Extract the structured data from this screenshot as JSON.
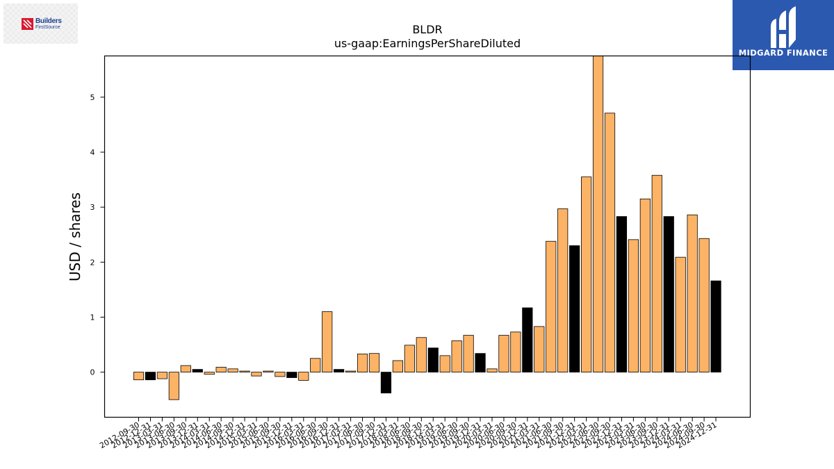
{
  "logos": {
    "left": {
      "line1": "Builders",
      "line2": "FirstSource",
      "icon": "builders-firstsource-logo-icon",
      "color": "#1b3f8f"
    },
    "right": {
      "name": "MIDGARD FINANCE",
      "icon": "midgard-finance-logo-icon",
      "background": "#2b59b0"
    }
  },
  "chart_data": {
    "type": "bar",
    "title": "BLDR",
    "subtitle": "us-gaap:EarningsPerShareDiluted",
    "xlabel": "",
    "ylabel": "USD / shares",
    "ylim": [
      -0.82,
      5.75
    ],
    "yticks": [
      0,
      1,
      2,
      3,
      4,
      5
    ],
    "grid": false,
    "legend": "none",
    "colors": {
      "quarter": "#fdb366",
      "annual": "#000000",
      "edge": "#000000"
    },
    "categories": [
      "2012-09-30",
      "2012-12-31",
      "2013-03-31",
      "2013-06-30",
      "2013-09-30",
      "2013-12-31",
      "2014-03-31",
      "2014-06-30",
      "2014-09-30",
      "2014-12-31",
      "2015-03-31",
      "2015-06-30",
      "2015-09-30",
      "2015-12-31",
      "2016-03-31",
      "2016-06-30",
      "2016-09-30",
      "2016-12-31",
      "2017-03-31",
      "2017-06-30",
      "2017-09-30",
      "2017-12-31",
      "2018-03-31",
      "2018-06-30",
      "2018-09-30",
      "2018-12-31",
      "2019-03-31",
      "2019-06-30",
      "2019-09-30",
      "2019-12-31",
      "2020-03-31",
      "2020-06-30",
      "2020-09-30",
      "2020-12-31",
      "2021-03-31",
      "2021-06-30",
      "2021-09-30",
      "2021-12-31",
      "2022-03-31",
      "2022-06-30",
      "2022-09-30",
      "2022-12-31",
      "2023-03-31",
      "2023-06-30",
      "2023-09-30",
      "2023-12-31",
      "2024-03-31",
      "2024-06-30",
      "2024-09-30",
      "2024-12-31"
    ],
    "visible_tick_labels": [
      "2012-09-30",
      "2012-12-31",
      "2013-03-31",
      "2013-06-30",
      "2013-09-30",
      "2013-12-31",
      "2014-03-31",
      "2014-06-30",
      "2014-09-30",
      "2014-12-31",
      "2015-03-31",
      "2015-06-30",
      "2015-09-30",
      "2015-12-31",
      "2016-03-31",
      "2016-06-30",
      "2016-09-30",
      "2016-12-31",
      "2017-03-31",
      "2017-06-30",
      "2017-09-30",
      "2017-12-31",
      "2018-03-31",
      "2018-06-30",
      "2018-09-30",
      "2018-12-31",
      "2019-03-31",
      "2019-06-30",
      "2019-09-30",
      "2019-12-31",
      "2020-03-31",
      "2020-06-30",
      "2020-09-30",
      "2020-12-31",
      "2021-03-31",
      "2021-06-30",
      "2021-09-30",
      "2021-12-31",
      "2022-03-31",
      "2022-06-30",
      "2022-09-30",
      "2022-12-31",
      "2023-03-31",
      "2023-06-30",
      "2023-09-30",
      "2023-12-31",
      "2024-03-31",
      "2024-06-30",
      "2024-09-30",
      "2024-12-31"
    ],
    "values": [
      -0.14,
      -0.14,
      -0.12,
      -0.5,
      0.12,
      0.05,
      -0.04,
      0.09,
      0.06,
      0.02,
      -0.07,
      0.02,
      -0.08,
      -0.1,
      -0.15,
      0.25,
      1.1,
      0.05,
      0.02,
      0.33,
      0.34,
      -0.38,
      0.21,
      0.49,
      0.63,
      0.44,
      0.3,
      0.57,
      0.67,
      0.34,
      0.06,
      0.67,
      0.73,
      1.17,
      0.83,
      2.38,
      2.97,
      2.3,
      3.55,
      5.75,
      4.71,
      2.83,
      2.41,
      3.15,
      3.58,
      2.83,
      2.09,
      2.86,
      2.43,
      1.66
    ],
    "is_annual": [
      false,
      true,
      false,
      false,
      false,
      true,
      false,
      false,
      false,
      false,
      false,
      false,
      false,
      true,
      false,
      false,
      false,
      true,
      false,
      false,
      false,
      true,
      false,
      false,
      false,
      true,
      false,
      false,
      false,
      true,
      false,
      false,
      false,
      true,
      false,
      false,
      false,
      true,
      false,
      false,
      false,
      true,
      false,
      false,
      false,
      true,
      false,
      false,
      false,
      true
    ]
  }
}
